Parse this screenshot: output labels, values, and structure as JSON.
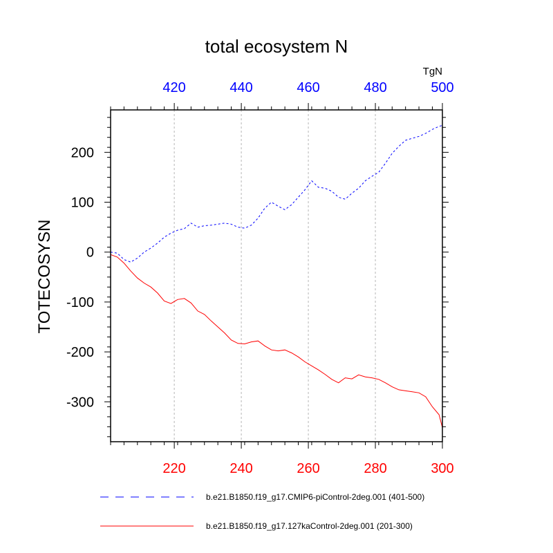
{
  "chart_data": {
    "type": "line",
    "title": "total ecosystem N",
    "ylabel": "TOTECOSYSN",
    "units": "TgN",
    "ylim": [
      -380,
      285
    ],
    "yticks": [
      200,
      100,
      0,
      -100,
      -200,
      -300
    ],
    "ytick_labels": [
      "200",
      "100",
      "0",
      "-100",
      "-200",
      "-300"
    ],
    "x_bottom": {
      "range": [
        201,
        300
      ],
      "ticks": [
        220,
        240,
        260,
        280,
        300
      ],
      "tick_labels": [
        "220",
        "240",
        "260",
        "280",
        "300"
      ],
      "color": "#ff0000"
    },
    "x_top": {
      "range": [
        401,
        500
      ],
      "ticks": [
        420,
        440,
        460,
        480,
        500
      ],
      "tick_labels": [
        "420",
        "440",
        "460",
        "480",
        "500"
      ],
      "color": "#0000ff"
    },
    "grid": "vertical dotted at major x ticks",
    "legend_position": "below plot",
    "series": [
      {
        "name": "b.e21.B1850.f19_g17.CMIP6-piControl-2deg.001 (401-500)",
        "axis": "top",
        "color": "#0000ff",
        "style": "dashed",
        "x": [
          401,
          403,
          405,
          407,
          409,
          411,
          413,
          415,
          417,
          419,
          421,
          423,
          425,
          427,
          429,
          431,
          433,
          435,
          437,
          439,
          441,
          443,
          445,
          447,
          449,
          451,
          453,
          455,
          457,
          459,
          461,
          463,
          465,
          467,
          469,
          471,
          473,
          475,
          477,
          479,
          481,
          483,
          485,
          487,
          489,
          491,
          493,
          495,
          497,
          499,
          500
        ],
        "y": [
          0,
          -2,
          -15,
          -20,
          -12,
          0,
          8,
          18,
          30,
          38,
          44,
          47,
          58,
          50,
          53,
          54,
          56,
          58,
          56,
          50,
          48,
          54,
          68,
          88,
          100,
          92,
          85,
          95,
          110,
          125,
          143,
          130,
          128,
          122,
          110,
          106,
          118,
          128,
          143,
          152,
          160,
          178,
          198,
          212,
          224,
          228,
          232,
          238,
          246,
          252,
          254
        ]
      },
      {
        "name": "b.e21.B1850.f19_g17.127kaControl-2deg.001 (201-300)",
        "axis": "bottom",
        "color": "#ff0000",
        "style": "solid",
        "x": [
          201,
          203,
          205,
          207,
          209,
          211,
          213,
          215,
          217,
          219,
          221,
          223,
          225,
          227,
          229,
          231,
          233,
          235,
          237,
          239,
          241,
          243,
          245,
          247,
          249,
          251,
          253,
          255,
          257,
          259,
          261,
          263,
          265,
          267,
          269,
          271,
          273,
          275,
          277,
          279,
          281,
          283,
          285,
          287,
          289,
          291,
          293,
          295,
          297,
          299,
          300
        ],
        "y": [
          -5,
          -10,
          -22,
          -38,
          -52,
          -62,
          -70,
          -82,
          -98,
          -103,
          -95,
          -93,
          -102,
          -118,
          -125,
          -138,
          -150,
          -162,
          -176,
          -183,
          -184,
          -180,
          -178,
          -188,
          -196,
          -198,
          -196,
          -202,
          -210,
          -220,
          -228,
          -236,
          -245,
          -255,
          -262,
          -252,
          -254,
          -246,
          -250,
          -252,
          -255,
          -262,
          -270,
          -276,
          -278,
          -280,
          -282,
          -290,
          -310,
          -326,
          -352
        ]
      }
    ]
  }
}
